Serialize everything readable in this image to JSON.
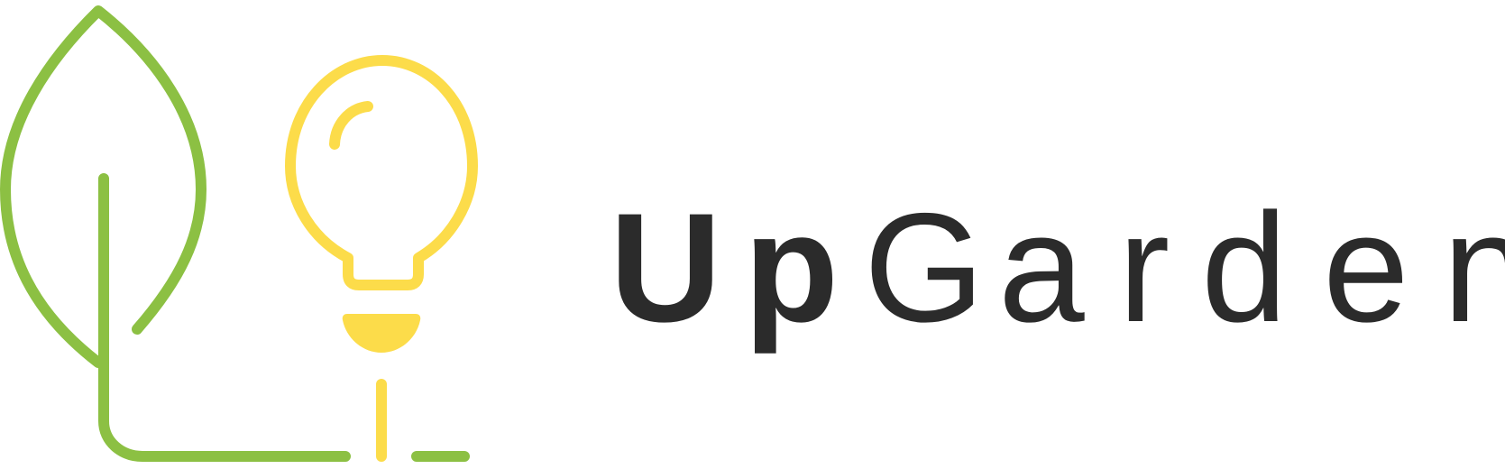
{
  "brand": {
    "name": "UpGarden",
    "letters": [
      "U",
      "p",
      "G",
      "a",
      "r",
      "d",
      "e",
      "n"
    ],
    "colors": {
      "leaf": "#8cc043",
      "bulb": "#fcdc4a",
      "text": "#2b2b2b"
    },
    "icons": [
      "leaf-icon",
      "light-bulb-icon"
    ]
  }
}
